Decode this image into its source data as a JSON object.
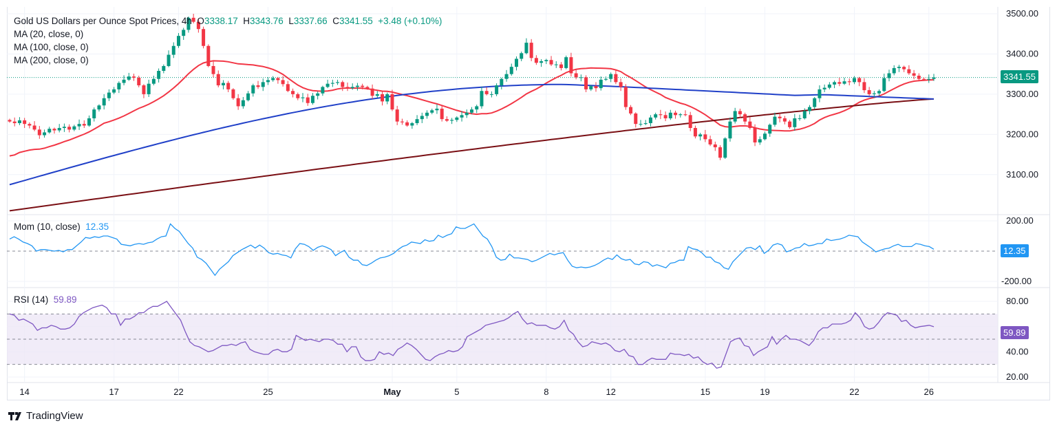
{
  "header": {
    "symbol": "Gold US Dollars per Ounce Spot Prices",
    "interval": "4h",
    "open_label": "O",
    "open": "3338.17",
    "high_label": "H",
    "high": "3343.76",
    "low_label": "L",
    "low": "3337.66",
    "close_label": "C",
    "close": "3341.55",
    "change": "+3.48 (+0.10%)"
  },
  "indicators": {
    "ma20": "MA (20, close, 0)",
    "ma100": "MA (100, close, 0)",
    "ma200": "MA (200, close, 0)",
    "mom_label": "Mom (10, close)",
    "mom_value": "12.35",
    "rsi_label": "RSI (14)",
    "rsi_value": "59.89"
  },
  "price_tags": {
    "last": "3341.55",
    "mom": "12.35",
    "rsi": "59.89"
  },
  "colors": {
    "up": "#089981",
    "down": "#f23645",
    "ma20": "#f23645",
    "ma100": "#2040c8",
    "ma200": "#7a0f14",
    "mom": "#2196f3",
    "rsi": "#7e57c2",
    "rsi_band": "#ede7f6"
  },
  "brand": "TradingView",
  "chart_data": [
    {
      "type": "candlestick",
      "title": "Gold US Dollars per Ounce Spot Prices, 4h",
      "ylim": [
        3000,
        3520
      ],
      "yticks": [
        "3500.00",
        "3400.00",
        "3300.00",
        "3200.00",
        "3100.00"
      ],
      "ytick_values": [
        3500,
        3400,
        3300,
        3200,
        3100
      ],
      "xticks": [
        {
          "label": "14",
          "index": 3
        },
        {
          "label": "17",
          "index": 21
        },
        {
          "label": "22",
          "index": 34
        },
        {
          "label": "25",
          "index": 52
        },
        {
          "label": "May",
          "index": 77,
          "bold": true
        },
        {
          "label": "5",
          "index": 90
        },
        {
          "label": "8",
          "index": 108
        },
        {
          "label": "12",
          "index": 121
        },
        {
          "label": "15",
          "index": 140
        },
        {
          "label": "19",
          "index": 152
        },
        {
          "label": "22",
          "index": 170
        },
        {
          "label": "26",
          "index": 185
        }
      ],
      "last_price": 3341.55,
      "closes": [
        3232,
        3228,
        3235,
        3226,
        3222,
        3212,
        3198,
        3205,
        3214,
        3210,
        3216,
        3219,
        3212,
        3220,
        3226,
        3222,
        3240,
        3262,
        3272,
        3290,
        3304,
        3312,
        3328,
        3336,
        3344,
        3341,
        3322,
        3300,
        3326,
        3338,
        3358,
        3370,
        3398,
        3420,
        3445,
        3460,
        3490,
        3480,
        3462,
        3420,
        3370,
        3350,
        3322,
        3328,
        3312,
        3290,
        3270,
        3285,
        3302,
        3322,
        3318,
        3330,
        3335,
        3340,
        3335,
        3325,
        3308,
        3300,
        3290,
        3292,
        3278,
        3296,
        3302,
        3318,
        3326,
        3328,
        3330,
        3318,
        3315,
        3318,
        3321,
        3318,
        3314,
        3296,
        3300,
        3282,
        3300,
        3262,
        3232,
        3230,
        3222,
        3228,
        3238,
        3246,
        3254,
        3260,
        3264,
        3238,
        3234,
        3236,
        3242,
        3248,
        3254,
        3262,
        3270,
        3308,
        3300,
        3300,
        3322,
        3338,
        3350,
        3368,
        3388,
        3402,
        3428,
        3390,
        3378,
        3382,
        3385,
        3374,
        3374,
        3365,
        3392,
        3352,
        3342,
        3342,
        3312,
        3320,
        3315,
        3336,
        3338,
        3350,
        3330,
        3318,
        3268,
        3252,
        3226,
        3226,
        3228,
        3242,
        3250,
        3248,
        3240,
        3254,
        3248,
        3250,
        3248,
        3216,
        3195,
        3200,
        3188,
        3175,
        3168,
        3142,
        3190,
        3232,
        3258,
        3250,
        3232,
        3216,
        3180,
        3188,
        3202,
        3224,
        3244,
        3240,
        3232,
        3218,
        3240,
        3240,
        3258,
        3268,
        3290,
        3312,
        3316,
        3324,
        3330,
        3326,
        3332,
        3330,
        3340,
        3330,
        3310,
        3300,
        3302,
        3308,
        3340,
        3352,
        3365,
        3368,
        3362,
        3352,
        3346,
        3338,
        3336,
        3338,
        3341.55
      ],
      "series": [
        {
          "name": "MA (20, close, 0)",
          "color": "#f23645",
          "values_note": "computed from closes"
        },
        {
          "name": "MA (100, close, 0)",
          "color": "#2040c8",
          "start": 3075,
          "end": 3288
        },
        {
          "name": "MA (200, close, 0)",
          "color": "#7a0f14",
          "start": 3010,
          "end": 3288
        }
      ]
    },
    {
      "type": "line",
      "title": "Mom (10, close)",
      "ylim": [
        -200,
        200
      ],
      "yticks": [
        "200.00",
        "-200.00"
      ],
      "ytick_values": [
        200,
        -200
      ],
      "zero_line": 0,
      "last_value": 12.35,
      "values": [
        80,
        95,
        80,
        60,
        50,
        35,
        0,
        10,
        10,
        5,
        0,
        5,
        -5,
        10,
        10,
        35,
        60,
        90,
        85,
        95,
        90,
        100,
        100,
        90,
        80,
        45,
        40,
        35,
        45,
        50,
        45,
        55,
        60,
        80,
        95,
        100,
        180,
        150,
        130,
        90,
        50,
        20,
        -40,
        -55,
        -80,
        -120,
        -160,
        -120,
        -95,
        -70,
        -30,
        -10,
        10,
        25,
        40,
        20,
        40,
        20,
        -10,
        -20,
        -15,
        -25,
        -30,
        -45,
        15,
        50,
        45,
        30,
        5,
        25,
        35,
        25,
        10,
        -30,
        -10,
        5,
        -40,
        -60,
        -60,
        -90,
        -95,
        -80,
        -60,
        -45,
        -40,
        -30,
        -15,
        10,
        30,
        40,
        60,
        55,
        50,
        75,
        65,
        70,
        105,
        90,
        105,
        115,
        160,
        150,
        150,
        165,
        180,
        140,
        100,
        80,
        30,
        -40,
        -60,
        -55,
        -20,
        -45,
        -45,
        -50,
        -55,
        -70,
        -60,
        -45,
        -30,
        -15,
        -25,
        -15,
        -10,
        -60,
        -100,
        -110,
        -105,
        -110,
        -105,
        -95,
        -80,
        -60,
        -45,
        -55,
        -25,
        -50,
        -60,
        -55,
        -85,
        -90,
        -70,
        -75,
        -100,
        -90,
        -100,
        -110,
        -80,
        -75,
        -60,
        -60,
        30,
        15,
        10,
        -10,
        -40,
        -40,
        -70,
        -80,
        -110,
        -120,
        -70,
        -40,
        -10,
        20,
        25,
        10,
        35,
        -15,
        5,
        40,
        50,
        40,
        -5,
        5,
        20,
        25,
        50,
        35,
        40,
        50,
        50,
        80,
        70,
        75,
        80,
        90,
        105,
        100,
        95,
        60,
        40,
        20,
        -5,
        5,
        15,
        20,
        35,
        45,
        30,
        30,
        30,
        50,
        45,
        35,
        30,
        12.35
      ]
    },
    {
      "type": "line",
      "title": "RSI (14)",
      "ylim": [
        15,
        85
      ],
      "yticks": [
        "80.00",
        "40.00",
        "20.00"
      ],
      "ytick_values": [
        80,
        40,
        20
      ],
      "bands": [
        70,
        50,
        30
      ],
      "band_fill": [
        30,
        70
      ],
      "last_value": 59.89,
      "values": [
        70,
        69,
        65,
        66,
        64,
        62,
        57,
        59,
        59,
        61,
        60,
        58,
        58,
        59,
        62,
        68,
        71,
        73,
        75,
        76,
        77,
        75,
        70,
        70,
        61,
        66,
        66,
        68,
        71,
        71,
        74,
        76,
        76,
        78,
        80,
        75,
        70,
        65,
        56,
        48,
        45,
        44,
        42,
        40,
        41,
        43,
        45,
        45,
        46,
        45,
        47,
        48,
        42,
        40,
        39,
        38,
        38,
        41,
        42,
        40,
        40,
        42,
        53,
        51,
        49,
        50,
        49,
        48,
        50,
        50,
        49,
        46,
        46,
        40,
        44,
        44,
        36,
        33,
        33,
        34,
        40,
        38,
        39,
        37,
        42,
        44,
        47,
        45,
        42,
        38,
        34,
        33,
        36,
        38,
        39,
        41,
        40,
        41,
        44,
        52,
        54,
        56,
        58,
        61,
        62,
        63,
        64,
        65,
        67,
        70,
        72,
        66,
        62,
        63,
        61,
        61,
        61,
        59,
        58,
        60,
        65,
        57,
        54,
        48,
        44,
        45,
        48,
        47,
        46,
        47,
        45,
        41,
        40,
        42,
        37,
        36,
        30,
        30,
        33,
        35,
        34,
        34,
        34,
        39,
        38,
        38,
        37,
        38,
        35,
        36,
        32,
        30,
        31,
        27,
        28,
        38,
        48,
        50,
        51,
        45,
        44,
        37,
        40,
        42,
        44,
        52,
        46,
        50,
        53,
        50,
        50,
        49,
        47,
        45,
        49,
        56,
        59,
        59,
        62,
        62,
        62,
        63,
        65,
        71,
        67,
        60,
        58,
        59,
        63,
        68,
        71,
        70,
        69,
        64,
        65,
        61,
        59,
        60,
        60.5,
        61,
        59.89
      ]
    }
  ]
}
